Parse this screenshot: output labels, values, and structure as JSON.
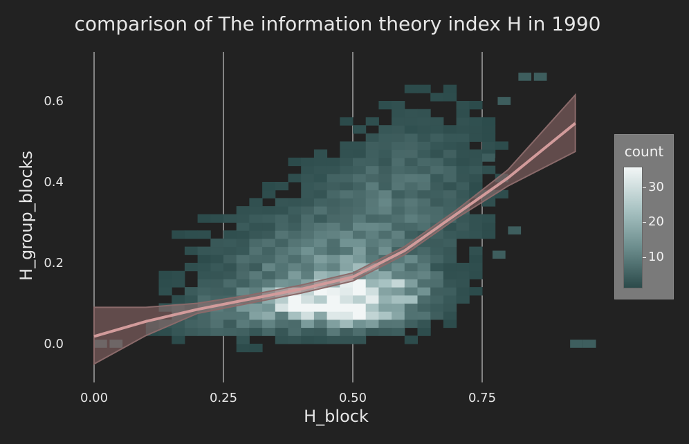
{
  "chart_data": {
    "type": "heatmap",
    "title": "comparison of The information theory index H in 1990",
    "xlabel": "H_block",
    "ylabel": "H_group_blocks",
    "x_range": [
      -0.05,
      0.97
    ],
    "y_range": [
      -0.07,
      0.7
    ],
    "x_ticks": [
      "0.00",
      "0.25",
      "0.50",
      "0.75"
    ],
    "x_tick_values": [
      0.0,
      0.25,
      0.5,
      0.75
    ],
    "y_ticks": [
      "0.0",
      "0.2",
      "0.4",
      "0.6"
    ],
    "y_tick_values": [
      0.0,
      0.2,
      0.4,
      0.6
    ],
    "grid": "vertical only",
    "legend": {
      "title": "count",
      "ticks": [
        "10",
        "20",
        "30"
      ],
      "tick_values": [
        10,
        20,
        30
      ],
      "range": [
        1,
        36
      ],
      "placement": "right"
    },
    "colors": {
      "background": "#222222",
      "low": "#2b4a4a",
      "mid": "#6f9090",
      "high": "#f2f6f6",
      "smooth_line": "#d29b9b",
      "ribbon": "#8a6a6a"
    },
    "density_clusters": [
      {
        "x": 0.45,
        "y": 0.1,
        "sx": 0.08,
        "sy": 0.035,
        "weight": 34
      },
      {
        "x": 0.55,
        "y": 0.13,
        "sx": 0.07,
        "sy": 0.05,
        "weight": 16
      },
      {
        "x": 0.42,
        "y": 0.2,
        "sx": 0.13,
        "sy": 0.08,
        "weight": 9
      },
      {
        "x": 0.55,
        "y": 0.34,
        "sx": 0.1,
        "sy": 0.1,
        "weight": 6
      },
      {
        "x": 0.65,
        "y": 0.45,
        "sx": 0.09,
        "sy": 0.12,
        "weight": 3
      },
      {
        "x": 0.25,
        "y": 0.07,
        "sx": 0.08,
        "sy": 0.04,
        "weight": 6
      }
    ],
    "smooth": {
      "x": [
        0.0,
        0.1,
        0.2,
        0.3,
        0.4,
        0.5,
        0.6,
        0.7,
        0.8,
        0.93
      ],
      "y": [
        0.018,
        0.055,
        0.085,
        0.11,
        0.135,
        0.165,
        0.23,
        0.32,
        0.41,
        0.545
      ],
      "lower": [
        -0.05,
        0.02,
        0.075,
        0.1,
        0.125,
        0.155,
        0.22,
        0.31,
        0.39,
        0.475
      ],
      "upper": [
        0.09,
        0.09,
        0.1,
        0.12,
        0.145,
        0.175,
        0.24,
        0.33,
        0.43,
        0.615
      ]
    }
  }
}
